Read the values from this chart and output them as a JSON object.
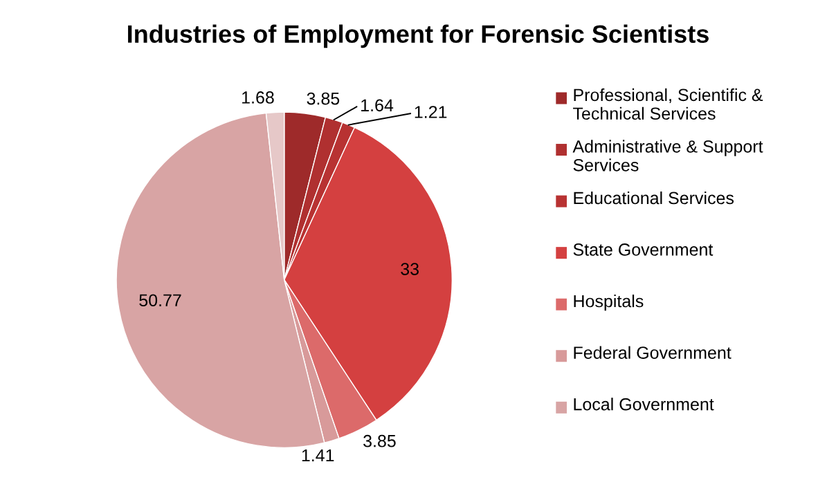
{
  "chart_data": {
    "type": "pie",
    "title": "Industries of Employment for Forensic Scientists",
    "categories": [
      "Professional, Scientific & Technical Services",
      "Administrative & Support Services",
      "Educational Services",
      "State Government",
      "Hospitals",
      "Federal Government",
      "Local Government",
      null
    ],
    "values": [
      3.85,
      1.64,
      1.21,
      33,
      3.85,
      1.41,
      50.77,
      1.68
    ],
    "colors": [
      "#9e2a2a",
      "#b03030",
      "#b83232",
      "#d44040",
      "#dc6a6a",
      "#d89a9a",
      "#d8a4a4",
      "#e6c8c8"
    ],
    "data_labels": true,
    "legend": "right"
  }
}
